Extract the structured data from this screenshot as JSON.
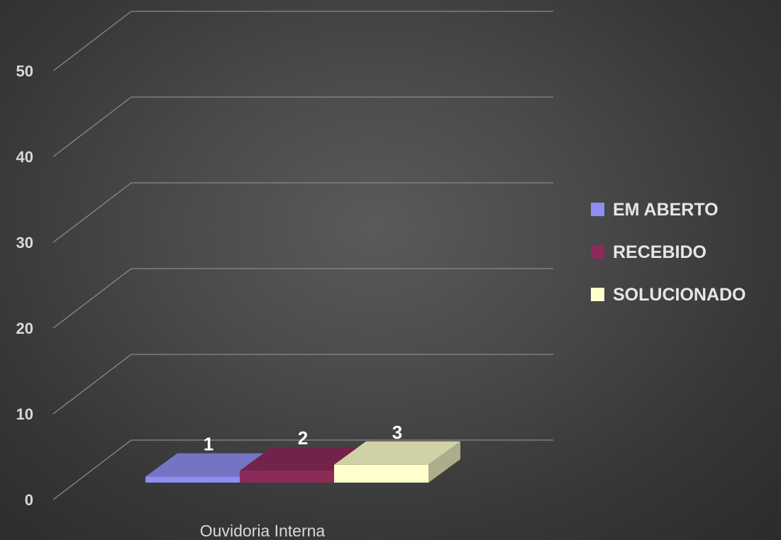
{
  "chart_data": {
    "type": "bar",
    "title": "",
    "xlabel": "",
    "ylabel": "",
    "categories": [
      "Ouvidoria Interna"
    ],
    "series": [
      {
        "name": "EM ABERTO",
        "values": [
          1
        ],
        "color": "#8e8ef0"
      },
      {
        "name": "RECEBIDO",
        "values": [
          2
        ],
        "color": "#8c2a5a"
      },
      {
        "name": "SOLUCIONADO",
        "values": [
          3
        ],
        "color": "#ffffcc"
      }
    ],
    "ylim": [
      0,
      50
    ],
    "yticks": [
      "0",
      "10",
      "20",
      "30",
      "40",
      "50"
    ],
    "grid": true,
    "legend": "right",
    "style": "3d-clustered-column",
    "background": "#3c3c3c"
  }
}
